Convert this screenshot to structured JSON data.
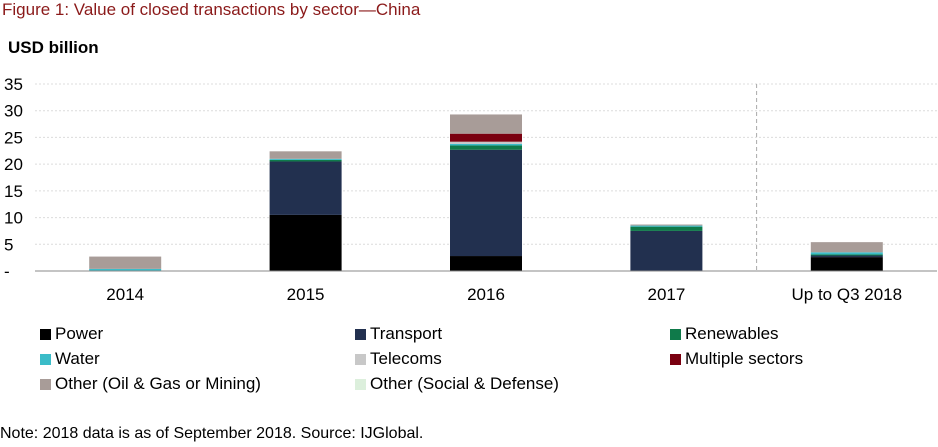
{
  "figure_title": "Figure 1: Value of closed transactions by sector—China",
  "unit_label": "USD billion",
  "note": "Note: 2018 data is as of September 2018. Source: IJGlobal.",
  "chart_data": {
    "type": "bar",
    "stacked": true,
    "title": "",
    "xlabel": "",
    "ylabel": "USD billion",
    "ylim": [
      0,
      35
    ],
    "yticks": [
      "-",
      "5",
      "10",
      "15",
      "20",
      "25",
      "30",
      "35"
    ],
    "grid": true,
    "legend_position": "bottom",
    "categories": [
      "2014",
      "2015",
      "2016",
      "2017",
      "Up to Q3 2018"
    ],
    "series": [
      {
        "name": "Power",
        "color": "#000000",
        "values": [
          0,
          10.5,
          2.8,
          0,
          2.6
        ]
      },
      {
        "name": "Transport",
        "color": "#22304f",
        "values": [
          0,
          10.0,
          19.9,
          7.5,
          0.3
        ]
      },
      {
        "name": "Renewables",
        "color": "#0f7a4a",
        "values": [
          0,
          0.3,
          0.8,
          0.8,
          0.2
        ]
      },
      {
        "name": "Water",
        "color": "#3bbcc8",
        "values": [
          0.4,
          0.2,
          0.3,
          0.2,
          0.4
        ]
      },
      {
        "name": "Telecoms",
        "color": "#c8c8c8",
        "values": [
          0,
          0,
          0.4,
          0,
          0
        ]
      },
      {
        "name": "Multiple sectors",
        "color": "#7a0010",
        "values": [
          0,
          0,
          1.5,
          0,
          0
        ]
      },
      {
        "name": "Other (Oil & Gas or Mining)",
        "color": "#a89c98",
        "values": [
          2.3,
          1.4,
          3.6,
          0.2,
          1.9
        ]
      },
      {
        "name": "Other (Social & Defense)",
        "color": "#dcefdc",
        "values": [
          0,
          0,
          0,
          0,
          0
        ]
      }
    ]
  }
}
